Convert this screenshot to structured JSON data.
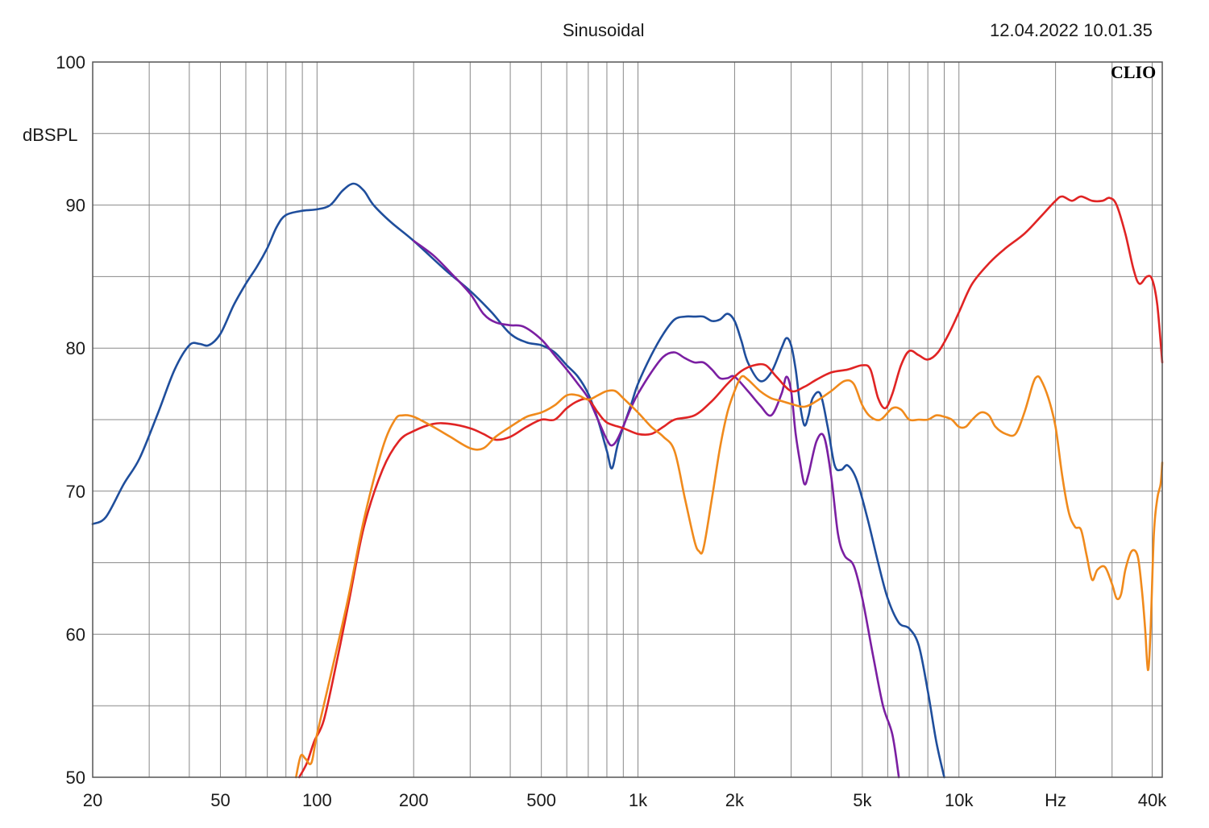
{
  "header": {
    "title": "Sinusoidal",
    "timestamp": "12.04.2022 10.01.35"
  },
  "logo_text": "CLIO",
  "colors": {
    "grid": "#888888",
    "blue": "#1f4e9c",
    "purple": "#7b1fa2",
    "red": "#e02424",
    "orange": "#f08a1c"
  },
  "chart_data": {
    "type": "line",
    "title": "Sinusoidal",
    "xlabel": "Hz",
    "ylabel": "dBSPL",
    "xscale": "log",
    "xlim": [
      20,
      43000
    ],
    "ylim": [
      50,
      100
    ],
    "grid": true,
    "x_ticks": [
      {
        "value": 20,
        "label": "20"
      },
      {
        "value": 50,
        "label": "50"
      },
      {
        "value": 100,
        "label": "100"
      },
      {
        "value": 200,
        "label": "200"
      },
      {
        "value": 500,
        "label": "500"
      },
      {
        "value": 1000,
        "label": "1k"
      },
      {
        "value": 2000,
        "label": "2k"
      },
      {
        "value": 5000,
        "label": "5k"
      },
      {
        "value": 10000,
        "label": "10k"
      },
      {
        "value": 20000,
        "label": "Hz"
      },
      {
        "value": 40000,
        "label": "40k"
      }
    ],
    "y_ticks": [
      {
        "value": 100,
        "label": "100"
      },
      {
        "value": 90,
        "label": "90"
      },
      {
        "value": 80,
        "label": "80"
      },
      {
        "value": 70,
        "label": "70"
      },
      {
        "value": 60,
        "label": "60"
      },
      {
        "value": 50,
        "label": "50"
      }
    ],
    "series": [
      {
        "color": "#1f4e9c",
        "points": [
          [
            20,
            67.7
          ],
          [
            22,
            68.2
          ],
          [
            25,
            70.5
          ],
          [
            28,
            72.3
          ],
          [
            32,
            75.5
          ],
          [
            36,
            78.5
          ],
          [
            40,
            80.2
          ],
          [
            43,
            80.3
          ],
          [
            46,
            80.2
          ],
          [
            50,
            81.0
          ],
          [
            55,
            83.0
          ],
          [
            60,
            84.5
          ],
          [
            65,
            85.7
          ],
          [
            70,
            87.0
          ],
          [
            75,
            88.5
          ],
          [
            80,
            89.3
          ],
          [
            90,
            89.6
          ],
          [
            100,
            89.7
          ],
          [
            110,
            90.0
          ],
          [
            120,
            91.0
          ],
          [
            130,
            91.5
          ],
          [
            140,
            91.0
          ],
          [
            150,
            90.0
          ],
          [
            170,
            88.8
          ],
          [
            200,
            87.5
          ],
          [
            250,
            85.5
          ],
          [
            300,
            84.0
          ],
          [
            350,
            82.5
          ],
          [
            400,
            81.0
          ],
          [
            450,
            80.4
          ],
          [
            500,
            80.2
          ],
          [
            550,
            79.7
          ],
          [
            600,
            78.8
          ],
          [
            650,
            78.0
          ],
          [
            700,
            76.8
          ],
          [
            750,
            75.0
          ],
          [
            800,
            72.8
          ],
          [
            830,
            71.6
          ],
          [
            870,
            73.5
          ],
          [
            950,
            76.0
          ],
          [
            1000,
            77.5
          ],
          [
            1100,
            79.5
          ],
          [
            1200,
            81.0
          ],
          [
            1300,
            82.0
          ],
          [
            1400,
            82.2
          ],
          [
            1500,
            82.2
          ],
          [
            1600,
            82.2
          ],
          [
            1700,
            81.9
          ],
          [
            1800,
            82.0
          ],
          [
            1900,
            82.4
          ],
          [
            2000,
            81.9
          ],
          [
            2100,
            80.5
          ],
          [
            2200,
            79.0
          ],
          [
            2400,
            77.7
          ],
          [
            2600,
            78.3
          ],
          [
            2800,
            80.0
          ],
          [
            2900,
            80.7
          ],
          [
            3000,
            80.2
          ],
          [
            3100,
            78.5
          ],
          [
            3200,
            76.0
          ],
          [
            3300,
            74.6
          ],
          [
            3400,
            75.3
          ],
          [
            3500,
            76.5
          ],
          [
            3700,
            76.8
          ],
          [
            3900,
            74.5
          ],
          [
            4100,
            71.8
          ],
          [
            4300,
            71.5
          ],
          [
            4500,
            71.8
          ],
          [
            4800,
            70.8
          ],
          [
            5200,
            68.0
          ],
          [
            5600,
            65.0
          ],
          [
            6000,
            62.5
          ],
          [
            6500,
            60.8
          ],
          [
            7000,
            60.4
          ],
          [
            7500,
            59.2
          ],
          [
            8000,
            56.0
          ],
          [
            8500,
            52.5
          ],
          [
            9000,
            50.0
          ]
        ]
      },
      {
        "color": "#7b1fa2",
        "points": [
          [
            200,
            87.5
          ],
          [
            230,
            86.5
          ],
          [
            260,
            85.3
          ],
          [
            300,
            83.8
          ],
          [
            330,
            82.4
          ],
          [
            360,
            81.8
          ],
          [
            400,
            81.6
          ],
          [
            440,
            81.5
          ],
          [
            500,
            80.6
          ],
          [
            550,
            79.5
          ],
          [
            600,
            78.5
          ],
          [
            650,
            77.5
          ],
          [
            700,
            76.5
          ],
          [
            750,
            75.0
          ],
          [
            800,
            73.6
          ],
          [
            830,
            73.2
          ],
          [
            870,
            73.8
          ],
          [
            950,
            75.8
          ],
          [
            1000,
            76.8
          ],
          [
            1100,
            78.3
          ],
          [
            1200,
            79.4
          ],
          [
            1300,
            79.7
          ],
          [
            1400,
            79.3
          ],
          [
            1500,
            79.0
          ],
          [
            1600,
            79.0
          ],
          [
            1700,
            78.5
          ],
          [
            1800,
            77.9
          ],
          [
            1900,
            77.9
          ],
          [
            2000,
            78.0
          ],
          [
            2200,
            77.0
          ],
          [
            2400,
            76.0
          ],
          [
            2600,
            75.3
          ],
          [
            2800,
            76.8
          ],
          [
            2900,
            78.0
          ],
          [
            3000,
            77.0
          ],
          [
            3100,
            74.0
          ],
          [
            3200,
            72.0
          ],
          [
            3300,
            70.5
          ],
          [
            3400,
            71.2
          ],
          [
            3600,
            73.5
          ],
          [
            3800,
            73.8
          ],
          [
            4000,
            71.0
          ],
          [
            4200,
            67.0
          ],
          [
            4400,
            65.5
          ],
          [
            4700,
            64.8
          ],
          [
            5000,
            62.5
          ],
          [
            5400,
            58.5
          ],
          [
            5800,
            55.0
          ],
          [
            6200,
            53.0
          ],
          [
            6500,
            50.0
          ]
        ]
      },
      {
        "color": "#e02424",
        "points": [
          [
            88,
            50.0
          ],
          [
            93,
            51.0
          ],
          [
            98,
            52.5
          ],
          [
            105,
            54.0
          ],
          [
            115,
            58.0
          ],
          [
            125,
            62.0
          ],
          [
            140,
            67.5
          ],
          [
            160,
            71.5
          ],
          [
            180,
            73.5
          ],
          [
            200,
            74.2
          ],
          [
            230,
            74.7
          ],
          [
            260,
            74.7
          ],
          [
            300,
            74.4
          ],
          [
            330,
            74.0
          ],
          [
            360,
            73.6
          ],
          [
            400,
            73.8
          ],
          [
            450,
            74.5
          ],
          [
            500,
            75.0
          ],
          [
            550,
            75.0
          ],
          [
            600,
            75.8
          ],
          [
            650,
            76.3
          ],
          [
            700,
            76.4
          ],
          [
            750,
            75.5
          ],
          [
            800,
            74.8
          ],
          [
            900,
            74.4
          ],
          [
            1000,
            74.0
          ],
          [
            1100,
            74.0
          ],
          [
            1200,
            74.5
          ],
          [
            1300,
            75.0
          ],
          [
            1500,
            75.3
          ],
          [
            1700,
            76.3
          ],
          [
            1900,
            77.5
          ],
          [
            2100,
            78.4
          ],
          [
            2300,
            78.8
          ],
          [
            2500,
            78.8
          ],
          [
            2700,
            78.0
          ],
          [
            3000,
            77.0
          ],
          [
            3300,
            77.3
          ],
          [
            3600,
            77.8
          ],
          [
            4000,
            78.3
          ],
          [
            4500,
            78.5
          ],
          [
            5000,
            78.8
          ],
          [
            5300,
            78.5
          ],
          [
            5600,
            76.5
          ],
          [
            5900,
            75.8
          ],
          [
            6200,
            76.8
          ],
          [
            6600,
            78.8
          ],
          [
            7000,
            79.8
          ],
          [
            7500,
            79.5
          ],
          [
            8000,
            79.2
          ],
          [
            8600,
            79.7
          ],
          [
            9300,
            81.0
          ],
          [
            10000,
            82.5
          ],
          [
            11000,
            84.5
          ],
          [
            12500,
            86.0
          ],
          [
            14000,
            87.0
          ],
          [
            16000,
            88.0
          ],
          [
            18000,
            89.2
          ],
          [
            20000,
            90.3
          ],
          [
            21000,
            90.6
          ],
          [
            22500,
            90.3
          ],
          [
            24000,
            90.6
          ],
          [
            26000,
            90.3
          ],
          [
            28000,
            90.3
          ],
          [
            29500,
            90.5
          ],
          [
            31000,
            90.0
          ],
          [
            33000,
            88.0
          ],
          [
            35000,
            85.5
          ],
          [
            36500,
            84.5
          ],
          [
            38500,
            85.0
          ],
          [
            40000,
            84.8
          ],
          [
            41500,
            83.0
          ],
          [
            43000,
            79.0
          ]
        ]
      },
      {
        "color": "#f08a1c",
        "points": [
          [
            86,
            50.0
          ],
          [
            89,
            51.5
          ],
          [
            92,
            51.3
          ],
          [
            96,
            51.0
          ],
          [
            100,
            53.0
          ],
          [
            110,
            57.0
          ],
          [
            125,
            62.5
          ],
          [
            140,
            68.0
          ],
          [
            160,
            73.0
          ],
          [
            175,
            75.0
          ],
          [
            185,
            75.3
          ],
          [
            200,
            75.2
          ],
          [
            230,
            74.5
          ],
          [
            260,
            73.8
          ],
          [
            300,
            73.0
          ],
          [
            330,
            73.0
          ],
          [
            360,
            73.8
          ],
          [
            400,
            74.5
          ],
          [
            450,
            75.2
          ],
          [
            500,
            75.5
          ],
          [
            550,
            76.0
          ],
          [
            600,
            76.7
          ],
          [
            650,
            76.7
          ],
          [
            700,
            76.4
          ],
          [
            750,
            76.7
          ],
          [
            800,
            77.0
          ],
          [
            850,
            77.0
          ],
          [
            900,
            76.5
          ],
          [
            1000,
            75.5
          ],
          [
            1100,
            74.5
          ],
          [
            1200,
            73.8
          ],
          [
            1300,
            72.8
          ],
          [
            1400,
            69.5
          ],
          [
            1500,
            66.5
          ],
          [
            1550,
            65.8
          ],
          [
            1600,
            66.0
          ],
          [
            1700,
            69.5
          ],
          [
            1800,
            73.0
          ],
          [
            1900,
            75.5
          ],
          [
            2000,
            77.0
          ],
          [
            2100,
            78.0
          ],
          [
            2200,
            77.8
          ],
          [
            2400,
            77.0
          ],
          [
            2600,
            76.5
          ],
          [
            2800,
            76.3
          ],
          [
            3000,
            76.1
          ],
          [
            3300,
            75.9
          ],
          [
            3600,
            76.3
          ],
          [
            4000,
            77.0
          ],
          [
            4400,
            77.7
          ],
          [
            4700,
            77.5
          ],
          [
            5000,
            76.0
          ],
          [
            5300,
            75.2
          ],
          [
            5700,
            75.0
          ],
          [
            6200,
            75.8
          ],
          [
            6600,
            75.7
          ],
          [
            7000,
            75.0
          ],
          [
            7500,
            75.0
          ],
          [
            8000,
            75.0
          ],
          [
            8500,
            75.3
          ],
          [
            9000,
            75.2
          ],
          [
            9500,
            75.0
          ],
          [
            10000,
            74.5
          ],
          [
            10500,
            74.5
          ],
          [
            11000,
            75.0
          ],
          [
            11700,
            75.5
          ],
          [
            12400,
            75.3
          ],
          [
            13000,
            74.5
          ],
          [
            14000,
            74.0
          ],
          [
            15000,
            74.0
          ],
          [
            16000,
            75.5
          ],
          [
            17000,
            77.5
          ],
          [
            17500,
            78.0
          ],
          [
            18000,
            77.8
          ],
          [
            19000,
            76.5
          ],
          [
            20000,
            74.5
          ],
          [
            21000,
            71.0
          ],
          [
            22000,
            68.5
          ],
          [
            23000,
            67.5
          ],
          [
            24000,
            67.3
          ],
          [
            25000,
            65.5
          ],
          [
            26000,
            63.8
          ],
          [
            27000,
            64.5
          ],
          [
            28500,
            64.7
          ],
          [
            30000,
            63.5
          ],
          [
            31000,
            62.5
          ],
          [
            32000,
            62.8
          ],
          [
            33000,
            64.5
          ],
          [
            34500,
            65.8
          ],
          [
            36000,
            65.5
          ],
          [
            37000,
            63.5
          ],
          [
            38000,
            60.5
          ],
          [
            38800,
            57.5
          ],
          [
            39500,
            60.0
          ],
          [
            40500,
            67.0
          ],
          [
            41500,
            69.5
          ],
          [
            42500,
            70.5
          ],
          [
            43000,
            72.0
          ]
        ]
      }
    ]
  }
}
